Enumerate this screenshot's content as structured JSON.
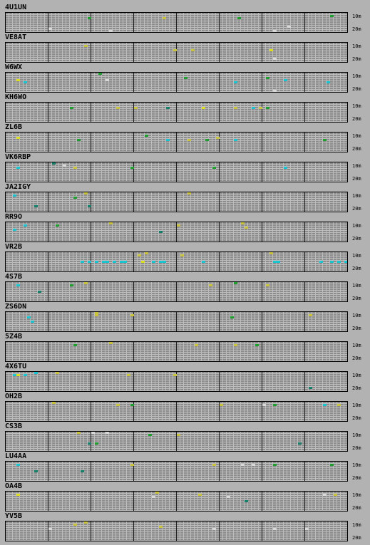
{
  "band_labels": [
    "10m",
    "20m"
  ],
  "colors": {
    "background": "#b2b2b2",
    "grid_fill": "#8c8c8c",
    "grid_minor": "#bdbdbd",
    "grid_major": "#1c1c1c",
    "frame": "#000000"
  },
  "spot_colors": {
    "y": "#c8c23c",
    "g": "#1e9e2e",
    "c": "#19c3d0",
    "t": "#17806a",
    "w": "#d8d8d8",
    "l": "#dede20"
  },
  "stations": [
    {
      "call": "4U1UN",
      "spots": [
        [
          116,
          "r2",
          "g"
        ],
        [
          222,
          "r2",
          "y"
        ],
        [
          327,
          "r2",
          "g"
        ],
        [
          456,
          "r1",
          "g"
        ],
        [
          62,
          "r7",
          "w"
        ],
        [
          146,
          "r8",
          "w"
        ],
        [
          396,
          "r6",
          "w"
        ],
        [
          376,
          "r8",
          "w"
        ]
      ]
    },
    {
      "call": "VE8AT",
      "spots": [
        [
          110,
          "r1",
          "y"
        ],
        [
          237,
          "r3",
          "y"
        ],
        [
          261,
          "r3",
          "y"
        ],
        [
          371,
          "r3",
          "l"
        ],
        [
          375,
          "r7",
          "w"
        ]
      ]
    },
    {
      "call": "W6WX",
      "spots": [
        [
          16,
          "r3",
          "l"
        ],
        [
          27,
          "r4",
          "c"
        ],
        [
          131,
          "r0",
          "g"
        ],
        [
          141,
          "r3",
          "w"
        ],
        [
          253,
          "r2",
          "g"
        ],
        [
          322,
          "r4",
          "c"
        ],
        [
          366,
          "r2",
          "g"
        ],
        [
          392,
          "r3",
          "c"
        ],
        [
          451,
          "r4",
          "c"
        ],
        [
          375,
          "r8",
          "w"
        ]
      ]
    },
    {
      "call": "KH6WO",
      "spots": [
        [
          90,
          "r2",
          "g"
        ],
        [
          155,
          "r2",
          "y"
        ],
        [
          181,
          "r2",
          "y"
        ],
        [
          229,
          "r2",
          "t"
        ],
        [
          276,
          "r2",
          "l"
        ],
        [
          321,
          "r2",
          "y"
        ],
        [
          347,
          "r2",
          "c"
        ],
        [
          356,
          "r2",
          "y"
        ],
        [
          365,
          "r2",
          "g"
        ]
      ]
    },
    {
      "call": "ZL6B",
      "spots": [
        [
          15,
          "r2",
          "l"
        ],
        [
          101,
          "r3",
          "g"
        ],
        [
          197,
          "r1",
          "g"
        ],
        [
          227,
          "r3",
          "c"
        ],
        [
          255,
          "r3",
          "y"
        ],
        [
          280,
          "r3",
          "g"
        ],
        [
          296,
          "r2",
          "y"
        ],
        [
          321,
          "r3",
          "c"
        ],
        [
          446,
          "r3",
          "g"
        ]
      ]
    },
    {
      "call": "VK6RBP",
      "spots": [
        [
          66,
          "r0",
          "t"
        ],
        [
          80,
          "r1",
          "w"
        ],
        [
          18,
          "r2",
          "c"
        ],
        [
          97,
          "r2",
          "y"
        ],
        [
          176,
          "r2",
          "g"
        ],
        [
          291,
          "r2",
          "g"
        ],
        [
          391,
          "r2",
          "c"
        ]
      ]
    },
    {
      "call": "JA2IGY",
      "spots": [
        [
          10,
          "r1",
          "c"
        ],
        [
          111,
          "r0",
          "y"
        ],
        [
          96,
          "r2",
          "g"
        ],
        [
          255,
          "r0",
          "y"
        ],
        [
          116,
          "r6",
          "t"
        ],
        [
          41,
          "r6",
          "t"
        ]
      ]
    },
    {
      "call": "RR9O",
      "spots": [
        [
          26,
          "r1",
          "c"
        ],
        [
          146,
          "r0",
          "y"
        ],
        [
          71,
          "r1",
          "g"
        ],
        [
          241,
          "r1",
          "y"
        ],
        [
          331,
          "r0",
          "y"
        ],
        [
          336,
          "r2",
          "y"
        ],
        [
          216,
          "r4",
          "t"
        ],
        [
          10,
          "r3",
          "c"
        ]
      ]
    },
    {
      "call": "VR2B",
      "spots": [
        [
          186,
          "r1",
          "y"
        ],
        [
          196,
          "r0",
          "y"
        ],
        [
          246,
          "r1",
          "y"
        ],
        [
          371,
          "r0",
          "y"
        ],
        [
          126,
          "r4",
          "c"
        ],
        [
          136,
          "r4",
          "c"
        ],
        [
          141,
          "r4",
          "c"
        ],
        [
          151,
          "r4",
          "c"
        ],
        [
          161,
          "r4",
          "c"
        ],
        [
          166,
          "r4",
          "c"
        ],
        [
          191,
          "r4",
          "l"
        ],
        [
          206,
          "r4",
          "c"
        ],
        [
          216,
          "r4",
          "c"
        ],
        [
          221,
          "r4",
          "c"
        ],
        [
          276,
          "r4",
          "c"
        ],
        [
          376,
          "r4",
          "c"
        ],
        [
          381,
          "r4",
          "c"
        ],
        [
          441,
          "r4",
          "c"
        ],
        [
          456,
          "r4",
          "c"
        ],
        [
          466,
          "r4",
          "c"
        ],
        [
          476,
          "r4",
          "c"
        ],
        [
          481,
          "r4",
          "c"
        ],
        [
          116,
          "r4",
          "c"
        ],
        [
          106,
          "r4",
          "c"
        ]
      ]
    },
    {
      "call": "4S7B",
      "spots": [
        [
          16,
          "r1",
          "c"
        ],
        [
          91,
          "r1",
          "g"
        ],
        [
          111,
          "r0",
          "y"
        ],
        [
          286,
          "r1",
          "y"
        ],
        [
          321,
          "r0",
          "g"
        ],
        [
          366,
          "r1",
          "y"
        ],
        [
          46,
          "r4",
          "t"
        ]
      ]
    },
    {
      "call": "ZS6DN",
      "spots": [
        [
          34,
          "r2",
          "c"
        ],
        [
          126,
          "r1",
          "y"
        ],
        [
          176,
          "r1",
          "y"
        ],
        [
          316,
          "r2",
          "g"
        ],
        [
          426,
          "r1",
          "y"
        ],
        [
          36,
          "r4",
          "c"
        ],
        [
          126,
          "r0",
          "y"
        ]
      ]
    },
    {
      "call": "5Z4B",
      "spots": [
        [
          96,
          "r1",
          "g"
        ],
        [
          146,
          "r0",
          "y"
        ],
        [
          266,
          "r1",
          "y"
        ],
        [
          321,
          "r1",
          "y"
        ],
        [
          351,
          "r1",
          "g"
        ]
      ]
    },
    {
      "call": "4X6TU",
      "spots": [
        [
          10,
          "r1",
          "c"
        ],
        [
          16,
          "r1",
          "l"
        ],
        [
          26,
          "r1",
          "c"
        ],
        [
          41,
          "r0",
          "c"
        ],
        [
          71,
          "r0",
          "y"
        ],
        [
          171,
          "r1",
          "y"
        ],
        [
          237,
          "r1",
          "y"
        ],
        [
          426,
          "r7",
          "t"
        ]
      ]
    },
    {
      "call": "OH2B",
      "spots": [
        [
          66,
          "r0",
          "y"
        ],
        [
          156,
          "r1",
          "y"
        ],
        [
          176,
          "r1",
          "g"
        ],
        [
          301,
          "r1",
          "y"
        ],
        [
          361,
          "r1",
          "w"
        ],
        [
          376,
          "r1",
          "g"
        ],
        [
          446,
          "r1",
          "c"
        ],
        [
          466,
          "r1",
          "y"
        ]
      ]
    },
    {
      "call": "CS3B",
      "spots": [
        [
          101,
          "r0",
          "y"
        ],
        [
          121,
          "r0",
          "w"
        ],
        [
          141,
          "r0",
          "w"
        ],
        [
          201,
          "r1",
          "g"
        ],
        [
          241,
          "r1",
          "y"
        ],
        [
          116,
          "r5",
          "t"
        ],
        [
          126,
          "r5",
          "g"
        ],
        [
          411,
          "r5",
          "t"
        ]
      ]
    },
    {
      "call": "LU4AA",
      "spots": [
        [
          16,
          "r1",
          "c"
        ],
        [
          176,
          "r1",
          "y"
        ],
        [
          291,
          "r1",
          "y"
        ],
        [
          331,
          "r1",
          "w"
        ],
        [
          346,
          "r1",
          "w"
        ],
        [
          376,
          "r1",
          "g"
        ],
        [
          456,
          "r1",
          "g"
        ],
        [
          41,
          "r4",
          "t"
        ],
        [
          106,
          "r4",
          "t"
        ]
      ]
    },
    {
      "call": "OA4B",
      "spots": [
        [
          16,
          "r1",
          "l"
        ],
        [
          211,
          "r0",
          "y"
        ],
        [
          206,
          "r2",
          "w"
        ],
        [
          271,
          "r1",
          "y"
        ],
        [
          311,
          "r2",
          "w"
        ],
        [
          446,
          "r1",
          "w"
        ],
        [
          461,
          "r1",
          "y"
        ],
        [
          336,
          "r4",
          "t"
        ]
      ]
    },
    {
      "call": "YV5B",
      "spots": [
        [
          110,
          "r0",
          "y"
        ],
        [
          96,
          "r1",
          "y"
        ],
        [
          61,
          "r3",
          "w"
        ],
        [
          216,
          "r2",
          "y"
        ],
        [
          291,
          "r3",
          "w"
        ],
        [
          376,
          "r3",
          "w"
        ],
        [
          421,
          "r3",
          "w"
        ]
      ]
    }
  ]
}
